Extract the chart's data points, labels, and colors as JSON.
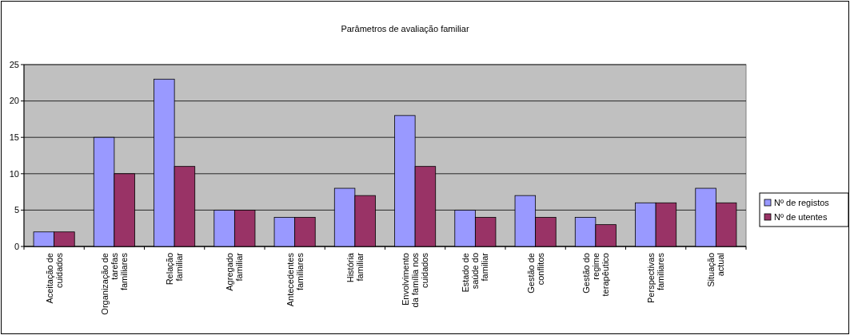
{
  "chart_data": {
    "type": "bar",
    "title": "Parâmetros de avaliação familiar",
    "categories": [
      "Aceitação de cuidados",
      "Organização de tarefas familiares",
      "Relação familiar",
      "Agregado familiar",
      "Antecedentes familiares",
      "História familiar",
      "Envolvimento da família nos cuidados",
      "Estado de saúde do familiar",
      "Gestão de conflitos",
      "Gestão do regime terapêutico",
      "Perspectivas familiares",
      "Situação actual"
    ],
    "series": [
      {
        "name": "Nº de registos",
        "color": "#9999ff",
        "values": [
          2,
          15,
          23,
          5,
          4,
          8,
          18,
          5,
          7,
          4,
          6,
          8
        ]
      },
      {
        "name": "Nº de utentes",
        "color": "#993366",
        "values": [
          2,
          10,
          11,
          5,
          4,
          7,
          11,
          4,
          4,
          3,
          6,
          6
        ]
      }
    ],
    "ylim": [
      0,
      25
    ],
    "yticks": [
      0,
      5,
      10,
      15,
      20,
      25
    ],
    "grid": "y",
    "legend": "right"
  }
}
